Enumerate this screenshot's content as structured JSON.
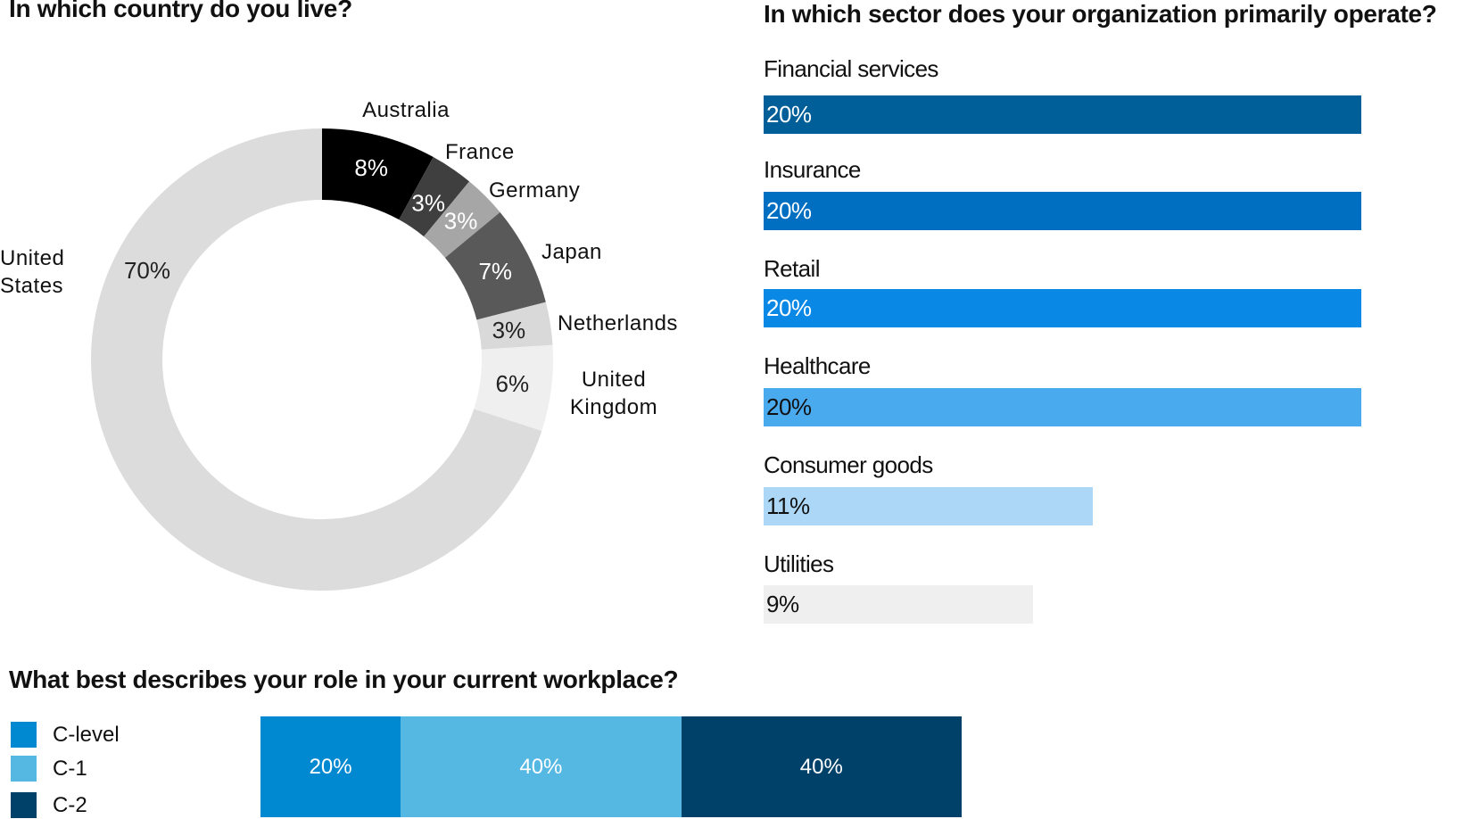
{
  "titles": {
    "country": "In which country do you live?",
    "sector": "In which sector does your organization primarily operate?",
    "role": "What best describes your role in your current workplace?"
  },
  "chart_data": [
    {
      "type": "pie",
      "variant": "donut",
      "title": "In which country do you live?",
      "categories": [
        "Australia",
        "France",
        "Germany",
        "Japan",
        "Netherlands",
        "United Kingdom",
        "United States"
      ],
      "values": [
        8,
        3,
        3,
        7,
        3,
        6,
        70
      ],
      "value_labels": [
        "8%",
        "3%",
        "3%",
        "7%",
        "3%",
        "6%",
        "70%"
      ],
      "label_lines": [
        [
          "Australia"
        ],
        [
          "France"
        ],
        [
          "Germany"
        ],
        [
          "Japan"
        ],
        [
          "Netherlands"
        ],
        [
          "United",
          "Kingdom"
        ],
        [
          "United",
          "States"
        ]
      ],
      "colors": [
        "#000000",
        "#3f3f3f",
        "#a6a6a6",
        "#595959",
        "#d9d9d9",
        "#efefef",
        "#dcdcdc"
      ],
      "value_label_colors": [
        "#ffffff",
        "#ffffff",
        "#ffffff",
        "#ffffff",
        "#222222",
        "#222222",
        "#222222"
      ],
      "unit": "%"
    },
    {
      "type": "bar",
      "orientation": "horizontal",
      "title": "In which sector does your organization primarily operate?",
      "categories": [
        "Financial services",
        "Insurance",
        "Retail",
        "Healthcare",
        "Consumer goods",
        "Utilities"
      ],
      "values": [
        20,
        20,
        20,
        20,
        11,
        9
      ],
      "value_labels": [
        "20%",
        "20%",
        "20%",
        "20%",
        "11%",
        "9%"
      ],
      "colors": [
        "#005f99",
        "#006fc1",
        "#0a88e6",
        "#4aaaee",
        "#acd7f6",
        "#efefef"
      ],
      "value_label_colors": [
        "#ffffff",
        "#ffffff",
        "#ffffff",
        "#111111",
        "#111111",
        "#111111"
      ],
      "xlim": [
        0,
        20
      ],
      "unit": "%"
    },
    {
      "type": "bar",
      "orientation": "horizontal",
      "stacked": true,
      "title": "What best describes your role in your current workplace?",
      "series": [
        {
          "name": "C-level",
          "values": [
            20
          ],
          "label": "20%",
          "color": "#0088d1"
        },
        {
          "name": "C-1",
          "values": [
            40
          ],
          "label": "40%",
          "color": "#55b8e3"
        },
        {
          "name": "C-2",
          "values": [
            40
          ],
          "label": "40%",
          "color": "#00416a"
        }
      ],
      "unit": "%"
    }
  ]
}
